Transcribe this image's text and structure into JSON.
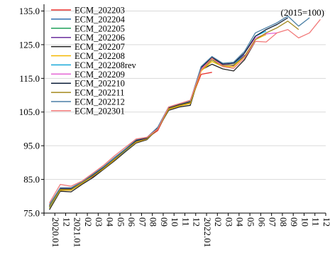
{
  "chart_data": {
    "type": "line",
    "title": "",
    "xlabel": "",
    "ylabel": "",
    "note": "(2015=100)",
    "ylim": [
      75,
      137
    ],
    "yticks": [
      75.0,
      85.0,
      95.0,
      105.0,
      115.0,
      125.0,
      135.0
    ],
    "ytick_labels": [
      "75.0",
      "85.0",
      "95.0",
      "105.0",
      "115.0",
      "125.0",
      "135.0"
    ],
    "grid": "horizontal",
    "legend_position": "top-left",
    "x": [
      "2020.01",
      "2020.12",
      "2021.01",
      "2021.02",
      "2021.03",
      "2021.04",
      "2021.05",
      "2021.06",
      "2021.07",
      "2021.08",
      "2021.09",
      "2021.10",
      "2021.11",
      "2021.12",
      "2022.01",
      "2022.02",
      "2022.03",
      "2022.04",
      "2022.05",
      "2022.06",
      "2022.07",
      "2022.08",
      "2022.09",
      "2022.10",
      "2022.11",
      "2022.12"
    ],
    "x_tick_labels": [
      "2020.01",
      "12",
      "2021.01",
      "02",
      "03",
      "04",
      "05",
      "06",
      "07",
      "08",
      "09",
      "10",
      "11",
      "12",
      "2022.01",
      "02",
      "03",
      "04",
      "05",
      "06",
      "07",
      "08",
      "09",
      "10",
      "11",
      "12"
    ],
    "series": [
      {
        "name": "ECM_202203",
        "color": "#e8312f",
        "values": [
          77.2,
          82.5,
          82.5,
          84.2,
          85.8,
          88.5,
          91.2,
          93.8,
          96.8,
          97.3,
          99.5,
          106.0,
          107.0,
          108.0,
          116.2,
          116.8,
          null,
          null,
          null,
          null,
          null,
          null,
          null,
          null,
          null,
          null
        ]
      },
      {
        "name": "ECM_202204",
        "color": "#2e6fb0",
        "values": [
          77.0,
          82.3,
          82.3,
          84.0,
          86.5,
          88.8,
          91.3,
          94.0,
          96.6,
          97.2,
          100.0,
          106.0,
          107.2,
          107.8,
          117.5,
          121.0,
          119.5,
          null,
          null,
          null,
          null,
          null,
          null,
          null,
          null,
          null
        ]
      },
      {
        "name": "ECM_202205",
        "color": "#1fa15b",
        "values": [
          76.5,
          82.0,
          82.0,
          83.8,
          86.0,
          88.3,
          91.0,
          93.5,
          96.0,
          97.0,
          100.0,
          106.0,
          107.0,
          107.5,
          117.5,
          120.5,
          118.5,
          118.0,
          null,
          null,
          null,
          null,
          null,
          null,
          null,
          null
        ]
      },
      {
        "name": "ECM_202206",
        "color": "#6b2f9e",
        "values": [
          76.8,
          82.2,
          82.2,
          84.0,
          86.0,
          88.5,
          91.0,
          93.5,
          96.2,
          97.0,
          100.0,
          106.0,
          107.0,
          107.8,
          117.8,
          121.2,
          119.2,
          118.8,
          122.0,
          null,
          null,
          null,
          null,
          null,
          null,
          null
        ]
      },
      {
        "name": "ECM_202207",
        "color": "#222222",
        "values": [
          76.0,
          81.5,
          81.3,
          83.5,
          85.5,
          88.0,
          90.5,
          93.2,
          95.8,
          96.8,
          100.0,
          105.5,
          106.5,
          107.0,
          117.5,
          119.2,
          117.8,
          117.2,
          120.5,
          126.0,
          null,
          null,
          null,
          null,
          null,
          null
        ]
      },
      {
        "name": "ECM_202208",
        "color": "#f5b800",
        "values": [
          76.5,
          81.8,
          81.8,
          83.8,
          86.0,
          88.2,
          90.8,
          93.5,
          96.0,
          97.0,
          100.0,
          105.8,
          106.8,
          107.5,
          117.2,
          120.0,
          118.5,
          118.5,
          121.5,
          126.5,
          128.0,
          null,
          null,
          null,
          null,
          null
        ]
      },
      {
        "name": "ECM_202208rev",
        "color": "#19a9d9",
        "values": [
          76.8,
          82.0,
          82.0,
          84.0,
          86.2,
          88.5,
          91.0,
          93.5,
          96.2,
          97.2,
          100.2,
          106.2,
          107.2,
          108.0,
          118.0,
          121.0,
          119.0,
          119.0,
          122.5,
          127.5,
          129.0,
          null,
          null,
          null,
          null,
          null
        ]
      },
      {
        "name": "ECM_202209",
        "color": "#e667d6",
        "values": [
          77.0,
          82.2,
          82.2,
          84.0,
          86.2,
          88.5,
          91.0,
          93.6,
          96.2,
          97.2,
          100.2,
          106.2,
          107.2,
          108.0,
          118.0,
          121.0,
          119.0,
          119.5,
          122.5,
          127.0,
          128.2,
          128.5,
          null,
          null,
          null,
          null
        ]
      },
      {
        "name": "ECM_202210",
        "color": "#0d1f3a",
        "values": [
          77.0,
          82.2,
          82.2,
          84.0,
          86.2,
          88.5,
          91.0,
          93.8,
          96.5,
          97.3,
          100.2,
          106.2,
          107.2,
          108.0,
          118.2,
          121.2,
          119.2,
          119.5,
          122.5,
          127.5,
          129.5,
          131.0,
          133.0,
          null,
          null,
          null
        ]
      },
      {
        "name": "ECM_202211",
        "color": "#a48a1e",
        "values": [
          77.0,
          82.0,
          82.0,
          84.0,
          86.0,
          88.3,
          91.0,
          93.6,
          96.2,
          97.0,
          100.0,
          106.0,
          107.0,
          107.8,
          117.5,
          120.5,
          118.8,
          119.0,
          121.5,
          126.5,
          128.5,
          130.0,
          132.0,
          129.5,
          null,
          null
        ]
      },
      {
        "name": "ECM_202212",
        "color": "#4a7fa5",
        "values": [
          77.5,
          82.5,
          82.5,
          84.3,
          86.5,
          88.8,
          91.5,
          94.0,
          96.8,
          97.5,
          100.5,
          106.5,
          107.5,
          108.3,
          118.5,
          121.5,
          119.5,
          119.8,
          123.0,
          128.5,
          130.0,
          131.5,
          133.5,
          130.5,
          133.0,
          null
        ]
      },
      {
        "name": "ECM_202301",
        "color": "#f27a7a",
        "values": [
          78.0,
          83.5,
          83.0,
          84.5,
          86.8,
          89.2,
          92.0,
          94.5,
          97.0,
          97.5,
          100.0,
          106.5,
          107.5,
          108.5,
          117.5,
          121.0,
          118.5,
          118.0,
          121.0,
          126.0,
          125.8,
          128.5,
          129.5,
          127.0,
          128.5,
          132.5
        ]
      }
    ]
  }
}
